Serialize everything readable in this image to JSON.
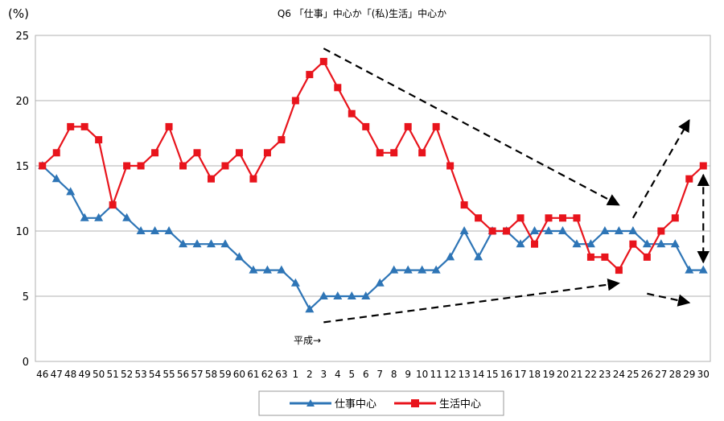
{
  "chart_data": {
    "type": "line",
    "title": "Q6 「仕事」中心か「(私)生活」中心か",
    "ylabel": "(%)",
    "xlabel": "",
    "ylim": [
      0,
      25
    ],
    "yticks": [
      0,
      5,
      10,
      15,
      20,
      25
    ],
    "grid": true,
    "legend_position": "bottom",
    "annotation": "平成→",
    "categories": [
      "46",
      "47",
      "48",
      "49",
      "50",
      "51",
      "52",
      "53",
      "54",
      "55",
      "56",
      "57",
      "58",
      "59",
      "60",
      "61",
      "62",
      "63",
      "1",
      "2",
      "3",
      "4",
      "5",
      "6",
      "7",
      "8",
      "9",
      "10",
      "11",
      "12",
      "13",
      "14",
      "15",
      "16",
      "17",
      "18",
      "19",
      "20",
      "21",
      "22",
      "23",
      "24",
      "25",
      "26",
      "27",
      "28",
      "29",
      "30"
    ],
    "series": [
      {
        "name": "仕事中心",
        "color": "#2e75b6",
        "marker": "triangle",
        "values": [
          15,
          14,
          13,
          11,
          11,
          12,
          11,
          10,
          10,
          10,
          9,
          9,
          9,
          9,
          8,
          7,
          7,
          7,
          6,
          4,
          5,
          5,
          5,
          5,
          6,
          7,
          7,
          7,
          7,
          8,
          10,
          8,
          10,
          10,
          9,
          10,
          10,
          10,
          9,
          9,
          10,
          10,
          10,
          9,
          9,
          9,
          7,
          7
        ]
      },
      {
        "name": "生活中心",
        "color": "#e8141c",
        "marker": "square",
        "values": [
          15,
          16,
          18,
          18,
          17,
          12,
          15,
          15,
          16,
          18,
          15,
          16,
          14,
          15,
          16,
          14,
          16,
          17,
          20,
          22,
          23,
          21,
          19,
          18,
          16,
          16,
          18,
          16,
          18,
          15,
          12,
          11,
          10,
          10,
          11,
          9,
          11,
          11,
          11,
          8,
          8,
          7,
          9,
          8,
          10,
          11,
          14,
          15
        ]
      }
    ],
    "arrows": [
      {
        "style": "dashed",
        "direction": "down-right",
        "from": [
          "3",
          24
        ],
        "to": [
          "24",
          12
        ]
      },
      {
        "style": "dashed",
        "direction": "up-right",
        "from": [
          "25",
          11
        ],
        "to": [
          "29",
          18.5
        ]
      },
      {
        "style": "dashed",
        "direction": "up-right",
        "from": [
          "3",
          3
        ],
        "to": [
          "24",
          6
        ]
      },
      {
        "style": "dashed",
        "direction": "down-right",
        "from": [
          "26",
          5.2
        ],
        "to": [
          "29",
          4.5
        ]
      },
      {
        "style": "dashed",
        "direction": "both",
        "from": [
          "30",
          14.3
        ],
        "to": [
          "30",
          7.6
        ]
      }
    ]
  }
}
